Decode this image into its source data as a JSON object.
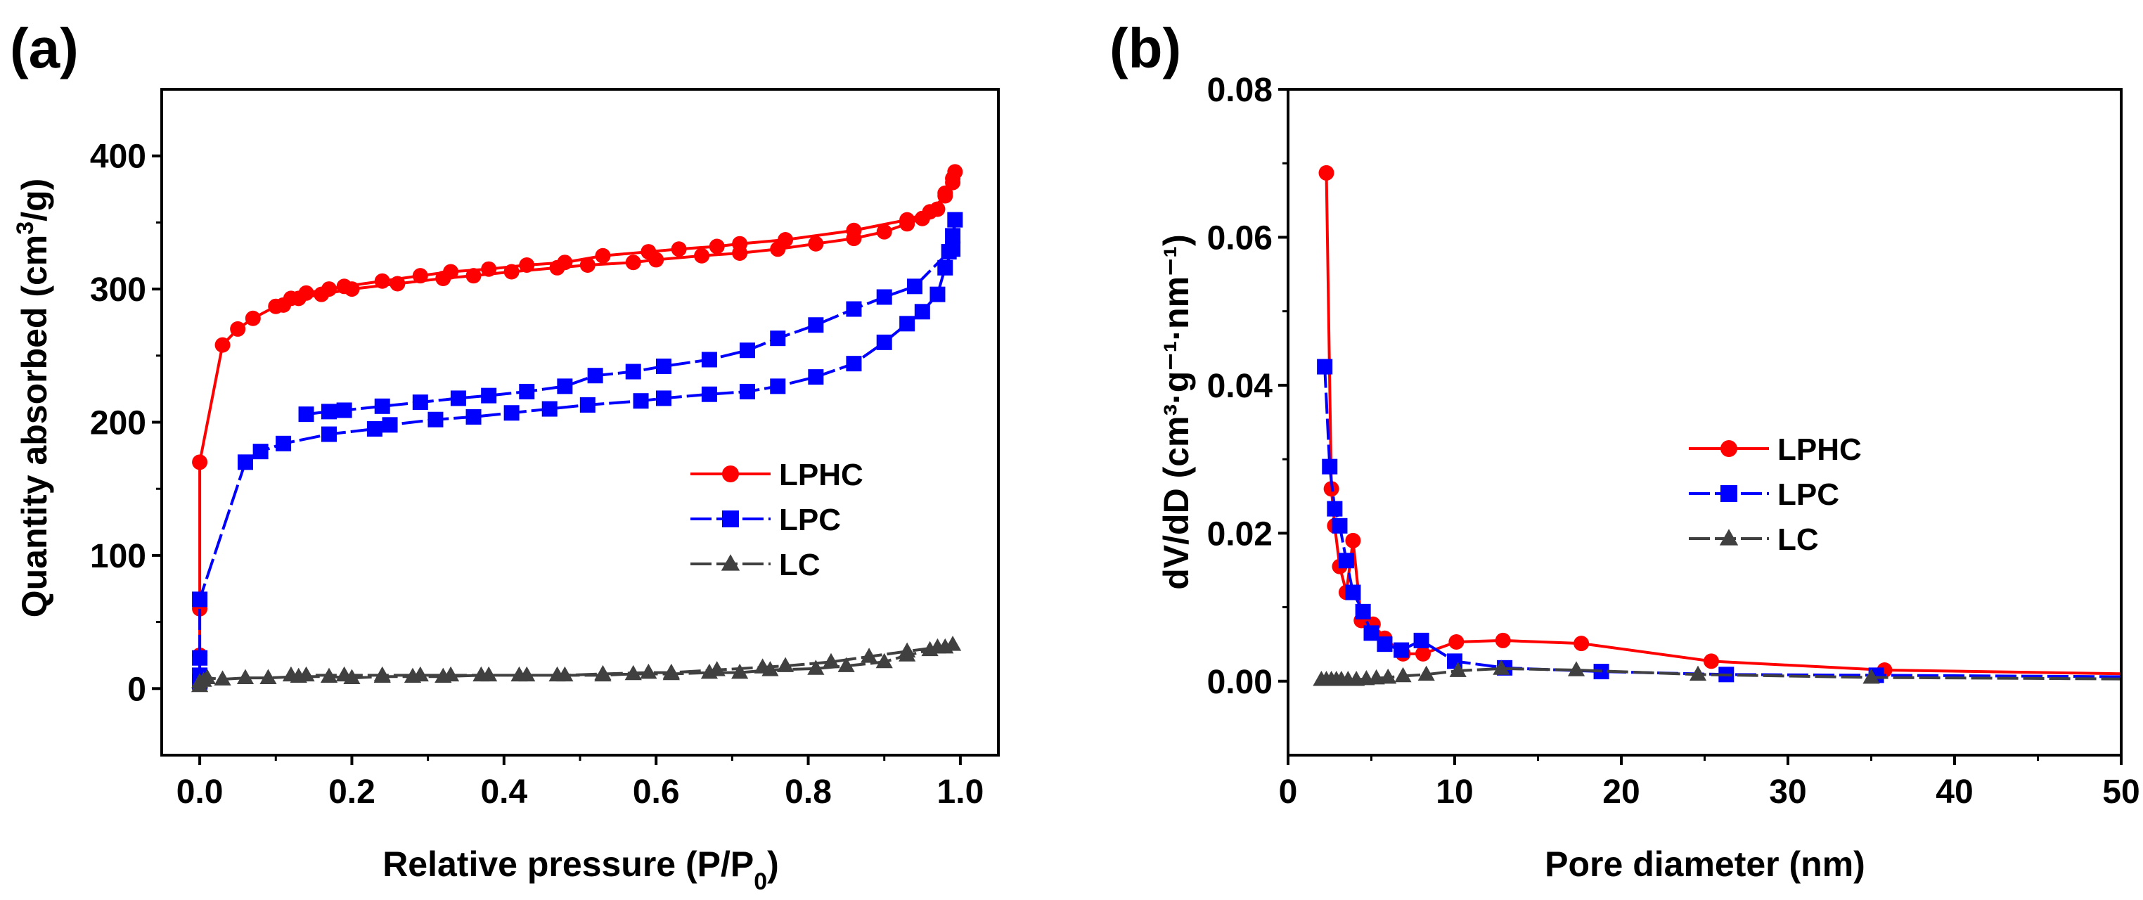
{
  "chart_data": [
    {
      "panel_label": "(a)",
      "type": "line",
      "xlabel": "Relative pressure (P/P",
      "xlabel_sub": "0",
      "xlabel_end": ")",
      "ylabel": "Quantity absorbed (cm",
      "ylabel_sup": "3",
      "ylabel_end": "/g)",
      "xlim": [
        -0.05,
        1.05
      ],
      "ylim": [
        -50,
        450
      ],
      "xticks": [
        0.0,
        0.2,
        0.4,
        0.6,
        0.8,
        1.0
      ],
      "xtick_labels": [
        "0.0",
        "0.2",
        "0.4",
        "0.6",
        "0.8",
        "1.0"
      ],
      "yticks": [
        0,
        100,
        200,
        300,
        400
      ],
      "ytick_labels": [
        "0",
        "100",
        "200",
        "300",
        "400"
      ],
      "legend_position": "center-right",
      "series": [
        {
          "name": "LPHC",
          "color": "#ff0000",
          "marker": "circle",
          "x": [
            0,
            0,
            0,
            0,
            0,
            0.03,
            0.05,
            0.07,
            0.1,
            0.13,
            0.16,
            0.2,
            0.26,
            0.32,
            0.36,
            0.41,
            0.47,
            0.51,
            0.57,
            0.6,
            0.66,
            0.71,
            0.76,
            0.81,
            0.86,
            0.9,
            0.93,
            0.95,
            0.97,
            0.98,
            0.99,
            0.993,
            0.99,
            0.98,
            0.96,
            0.93,
            0.86,
            0.77,
            0.71,
            0.68,
            0.63,
            0.59,
            0.53,
            0.48,
            0.43,
            0.38,
            0.33,
            0.29,
            0.24,
            0.19,
            0.17,
            0.14,
            0.12,
            0.11
          ],
          "y": [
            5,
            10,
            25,
            60,
            170,
            258,
            270,
            278,
            287,
            293,
            296,
            300,
            304,
            308,
            310,
            313,
            316,
            318,
            320,
            322,
            325,
            327,
            330,
            334,
            338,
            343,
            349,
            353,
            360,
            372,
            383,
            388,
            380,
            370,
            358,
            352,
            344,
            337,
            334,
            332,
            330,
            328,
            325,
            320,
            318,
            315,
            313,
            310,
            306,
            302,
            300,
            297,
            293,
            288
          ]
        },
        {
          "name": "LPC",
          "color": "#0000ff",
          "marker": "square",
          "x": [
            0,
            0,
            0,
            0,
            0.06,
            0.08,
            0.11,
            0.17,
            0.23,
            0.25,
            0.31,
            0.36,
            0.41,
            0.46,
            0.51,
            0.58,
            0.61,
            0.67,
            0.72,
            0.76,
            0.81,
            0.86,
            0.9,
            0.93,
            0.95,
            0.97,
            0.98,
            0.99,
            0.993,
            0.99,
            0.985,
            0.94,
            0.9,
            0.86,
            0.81,
            0.76,
            0.72,
            0.67,
            0.61,
            0.57,
            0.52,
            0.48,
            0.43,
            0.38,
            0.34,
            0.29,
            0.24,
            0.19,
            0.17,
            0.14
          ],
          "y": [
            5,
            10,
            23,
            67,
            170,
            178,
            184,
            191,
            195,
            198,
            202,
            204,
            207,
            210,
            213,
            216,
            218,
            221,
            223,
            227,
            234,
            244,
            260,
            274,
            283,
            296,
            316,
            330,
            352,
            340,
            328,
            302,
            294,
            285,
            273,
            263,
            254,
            247,
            242,
            238,
            235,
            227,
            223,
            220,
            218,
            215,
            212,
            209,
            208,
            206
          ]
        },
        {
          "name": "LC",
          "color": "#404040",
          "marker": "triangle",
          "x": [
            0,
            0,
            0.005,
            0.01,
            0.03,
            0.06,
            0.09,
            0.13,
            0.17,
            0.2,
            0.24,
            0.28,
            0.32,
            0.37,
            0.42,
            0.47,
            0.53,
            0.57,
            0.62,
            0.67,
            0.71,
            0.75,
            0.81,
            0.85,
            0.9,
            0.93,
            0.96,
            0.98,
            0.99,
            0.97,
            0.93,
            0.88,
            0.83,
            0.77,
            0.74,
            0.68,
            0.62,
            0.59,
            0.53,
            0.48,
            0.43,
            0.38,
            0.33,
            0.29,
            0.24,
            0.19,
            0.14,
            0.12
          ],
          "y": [
            2,
            5,
            6,
            8,
            7,
            8,
            8,
            9,
            9,
            8,
            9,
            9,
            9,
            10,
            10,
            10,
            10,
            11,
            11,
            12,
            12,
            14,
            15,
            17,
            20,
            25,
            29,
            31,
            33,
            31,
            28,
            24,
            20,
            17,
            16,
            14,
            12,
            12,
            11,
            10,
            10,
            10,
            10,
            10,
            10,
            10,
            10,
            10
          ]
        }
      ]
    },
    {
      "panel_label": "(b)",
      "type": "line",
      "xlabel": "Pore diameter (nm)",
      "ylabel": "dV/dD (cm³·g⁻¹·nm⁻¹)",
      "xlim": [
        0,
        50
      ],
      "ylim": [
        -0.01,
        0.08
      ],
      "xticks": [
        0,
        10,
        20,
        30,
        40,
        50
      ],
      "xtick_labels": [
        "0",
        "10",
        "20",
        "30",
        "40",
        "50"
      ],
      "yticks": [
        0,
        0.02,
        0.04,
        0.06,
        0.08
      ],
      "ytick_labels": [
        "0.00",
        "0.02",
        "0.04",
        "0.06",
        "0.08"
      ],
      "legend_position": "center-right",
      "series": [
        {
          "name": "LPHC",
          "color": "#ff0000",
          "marker": "circle",
          "x": [
            2.3,
            2.6,
            2.8,
            3.1,
            3.5,
            3.9,
            4.4,
            5.1,
            5.8,
            6.9,
            8.1,
            10.1,
            12.9,
            17.6,
            25.4,
            35.8,
            50
          ],
          "y": [
            0.0687,
            0.026,
            0.021,
            0.0155,
            0.012,
            0.019,
            0.0082,
            0.0077,
            0.0058,
            0.0037,
            0.0037,
            0.0053,
            0.0055,
            0.0051,
            0.0027,
            0.0015,
            0.001
          ]
        },
        {
          "name": "LPC",
          "color": "#0000ff",
          "marker": "square",
          "x": [
            2.2,
            2.5,
            2.8,
            3.1,
            3.5,
            3.9,
            4.5,
            5.0,
            5.8,
            6.8,
            8.0,
            10.0,
            13.0,
            18.8,
            26.3,
            35.3,
            50
          ],
          "y": [
            0.0425,
            0.029,
            0.0233,
            0.021,
            0.0163,
            0.012,
            0.0094,
            0.0065,
            0.005,
            0.0042,
            0.0055,
            0.0027,
            0.0018,
            0.0013,
            0.0009,
            0.0008,
            0.0006
          ]
        },
        {
          "name": "LC",
          "color": "#404040",
          "marker": "triangle",
          "x": [
            2.0,
            2.3,
            2.6,
            2.9,
            3.2,
            3.6,
            4.1,
            4.7,
            5.3,
            6.0,
            6.9,
            8.3,
            10.2,
            12.8,
            17.3,
            24.6,
            35,
            50
          ],
          "y": [
            0.0002,
            0.0002,
            0.0002,
            0.0002,
            0.0002,
            0.0002,
            0.0002,
            0.0003,
            0.0004,
            0.0005,
            0.0007,
            0.0009,
            0.0014,
            0.0017,
            0.0015,
            0.0009,
            0.0005,
            0.0003
          ]
        }
      ]
    }
  ]
}
